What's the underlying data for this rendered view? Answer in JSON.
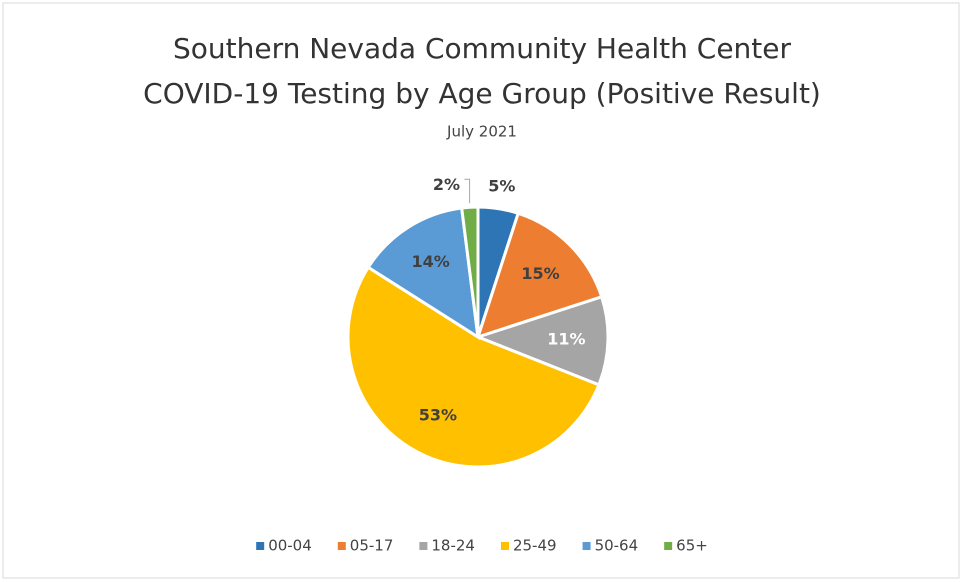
{
  "chart_data": {
    "type": "pie",
    "title": [
      "Southern Nevada Community Health Center",
      "COVID-19 Testing by Age Group (Positive Result)"
    ],
    "subtitle": "July 2021",
    "categories": [
      "00-04",
      "05-17",
      "18-24",
      "25-49",
      "50-64",
      "65+"
    ],
    "values": [
      5,
      15,
      11,
      53,
      14,
      2
    ],
    "value_labels": [
      "5%",
      "15%",
      "11%",
      "53%",
      "14%",
      "2%"
    ],
    "colors": [
      "#2e75b6",
      "#ed7d31",
      "#a5a5a5",
      "#ffc000",
      "#5b9bd5",
      "#70ad47"
    ],
    "legend": "bottom"
  }
}
